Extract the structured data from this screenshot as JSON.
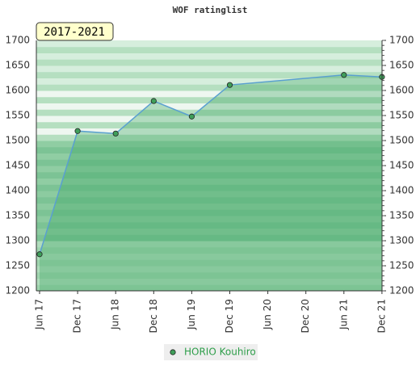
{
  "chart_data": {
    "type": "line",
    "title": "WOF ratinglist",
    "annotation": "2017-2021",
    "categories": [
      "Jun 17",
      "Dec 17",
      "Jun 18",
      "Dec 18",
      "Jun 19",
      "Dec 19",
      "Jun 20",
      "Dec 20",
      "Jun 21",
      "Dec 21"
    ],
    "series": [
      {
        "name": "HORIO Kouhiro",
        "color": "#5aa0d0",
        "x": [
          "Jun 17",
          "Dec 17",
          "Jun 18",
          "Dec 18",
          "Jun 19",
          "Dec 19",
          "Jun 21",
          "Dec 21"
        ],
        "values": [
          1273,
          1519,
          1514,
          1579,
          1548,
          1611,
          1631,
          1627
        ]
      }
    ],
    "ylim": [
      1200,
      1700
    ],
    "yticks": [
      1200,
      1250,
      1300,
      1350,
      1400,
      1450,
      1500,
      1550,
      1600,
      1650,
      1700
    ]
  }
}
